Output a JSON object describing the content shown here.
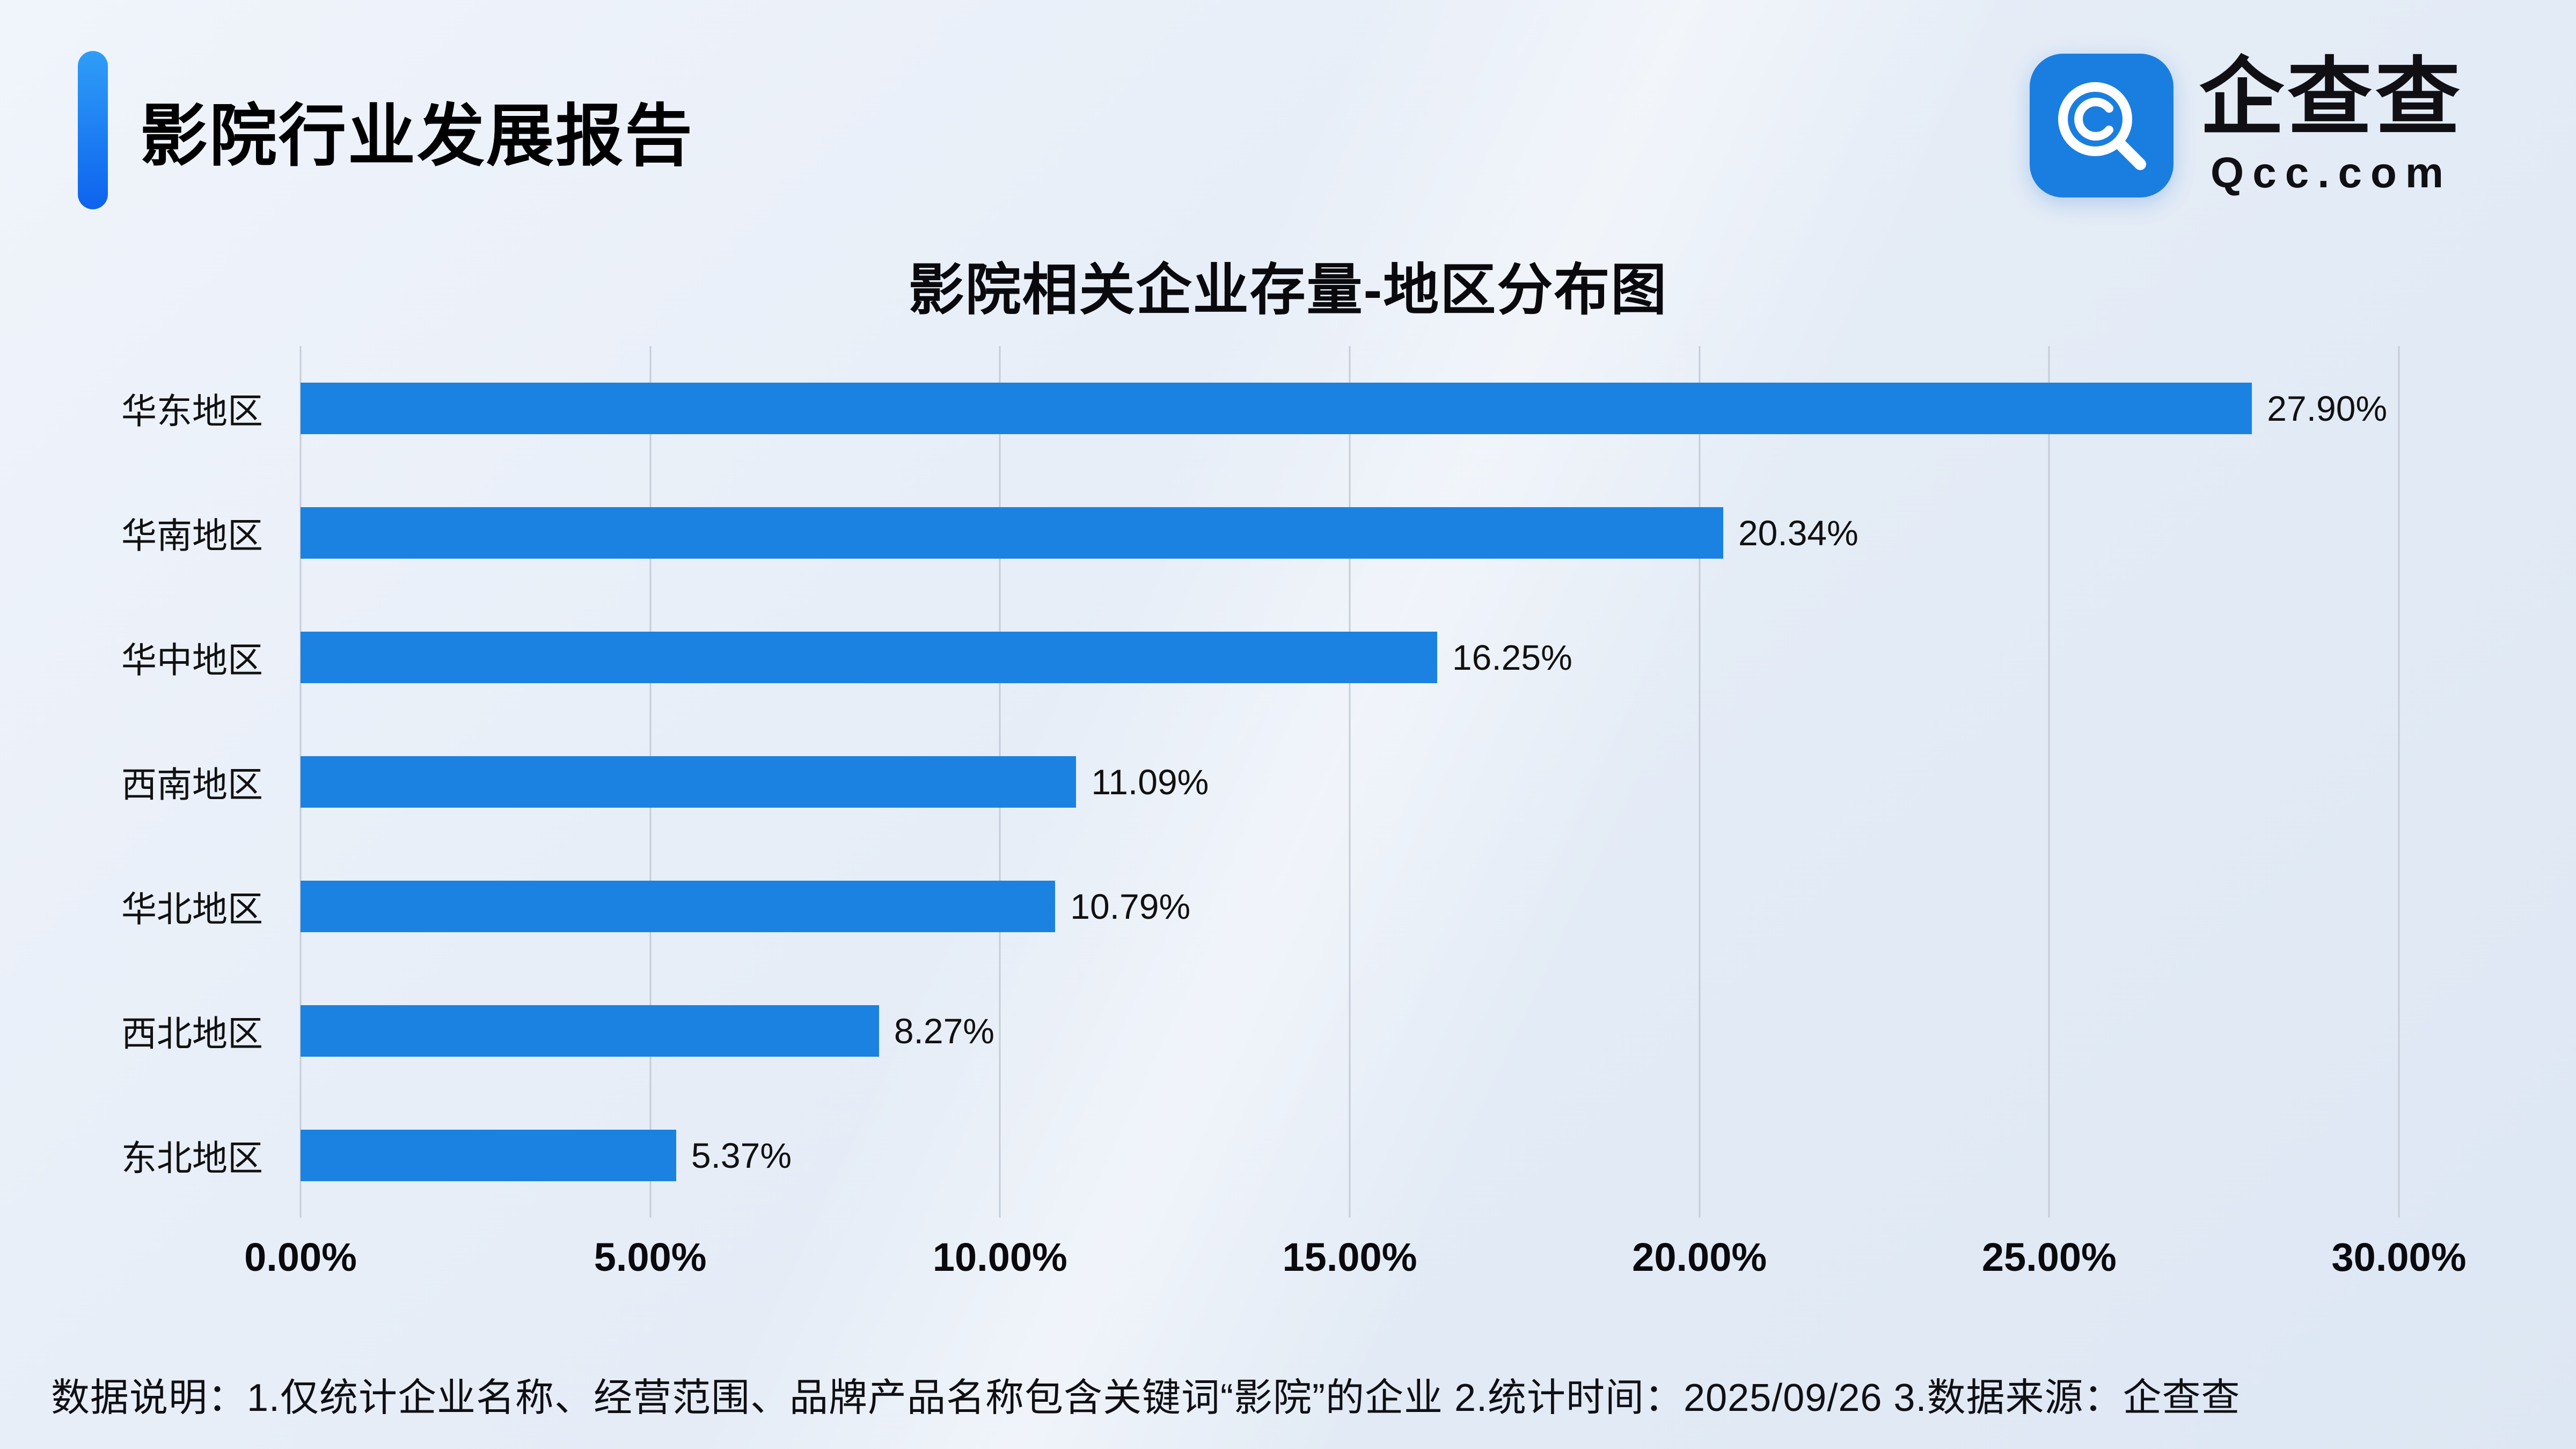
{
  "header": {
    "title": "影院行业发展报告"
  },
  "logo": {
    "brand": "企查查",
    "domain": "Qcc.com",
    "color": "#1a7ee0"
  },
  "chart_data": {
    "type": "bar",
    "orientation": "horizontal",
    "title": "影院相关企业存量-地区分布图",
    "categories": [
      "华东地区",
      "华南地区",
      "华中地区",
      "西南地区",
      "华北地区",
      "西北地区",
      "东北地区"
    ],
    "values": [
      27.9,
      20.34,
      16.25,
      11.09,
      10.79,
      8.27,
      5.37
    ],
    "value_labels": [
      "27.90%",
      "20.34%",
      "16.25%",
      "11.09%",
      "10.79%",
      "8.27%",
      "5.37%"
    ],
    "x_ticks": [
      "0.00%",
      "5.00%",
      "10.00%",
      "15.00%",
      "20.00%",
      "25.00%",
      "30.00%"
    ],
    "xlim": [
      0,
      30
    ],
    "bar_color": "#1b82e2",
    "grid": true,
    "legend": "none"
  },
  "footer": {
    "note": "数据说明：1.仅统计企业名称、经营范围、品牌产品名称包含关键词“影院”的企业  2.统计时间：2025/09/26   3.数据来源：企查查"
  }
}
